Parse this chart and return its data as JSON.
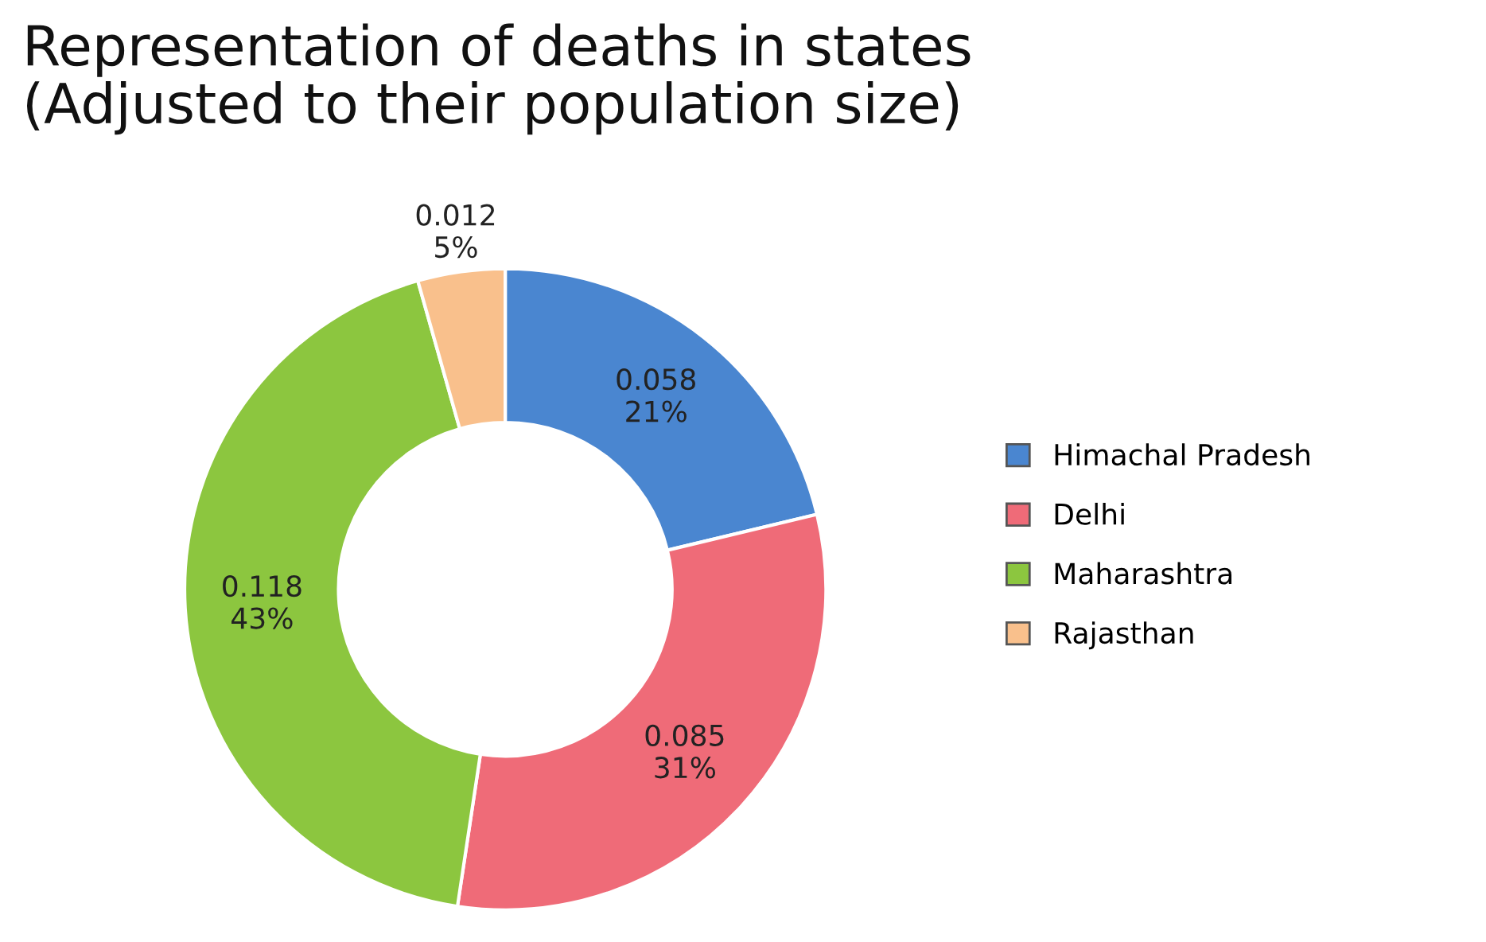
{
  "chart_data": {
    "type": "donut",
    "title": "Representation of deaths in states\n(Adjusted to their population size)",
    "categories": [
      "Himachal Pradesh",
      "Delhi",
      "Maharashtra",
      "Rajasthan"
    ],
    "values": [
      0.058,
      0.085,
      0.118,
      0.012
    ],
    "colors": [
      "#4a86d0",
      "#ef6b78",
      "#8cc63f",
      "#f9c08c"
    ],
    "value_labels": [
      "0.058\n21%",
      "0.085\n31%",
      "0.118\n43%",
      "0.012\n5%"
    ],
    "legend": "right"
  }
}
